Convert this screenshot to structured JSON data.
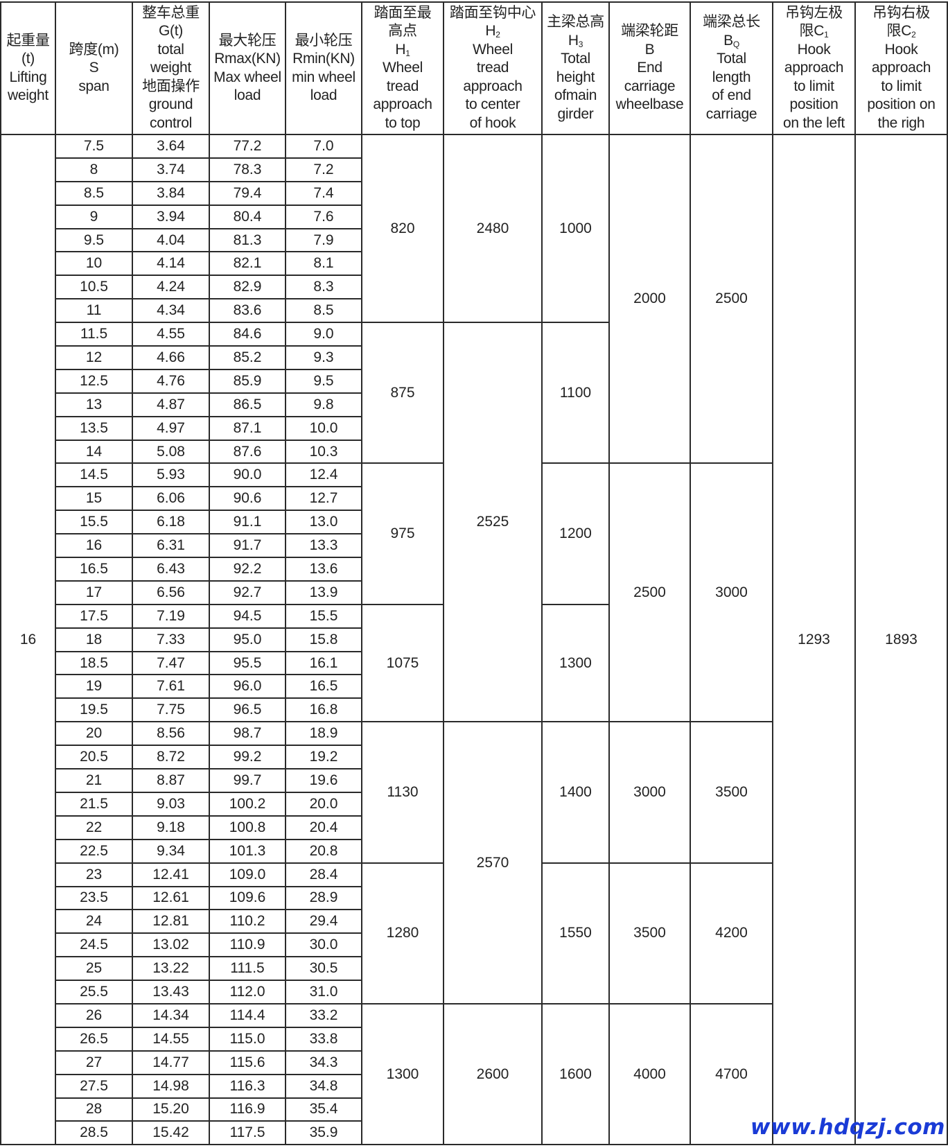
{
  "headers": [
    [
      "起重量",
      "(t)",
      "Lifting",
      "weight"
    ],
    [
      "跨度(m)",
      "S",
      "span"
    ],
    [
      "整车总重",
      "G(t)",
      "total",
      "weight",
      "地面操作",
      "ground",
      "control"
    ],
    [
      "最大轮压",
      "Rmax(KN)",
      "Max wheel",
      "load"
    ],
    [
      "最小轮压",
      "Rmin(KN)",
      "min wheel",
      "load"
    ],
    [
      "踏面至最",
      "高点",
      {
        "t": "H",
        "sub": "1"
      },
      "Wheel",
      "tread",
      "approach",
      "to top"
    ],
    [
      "踏面至钩中心",
      {
        "t": "H",
        "sub": "2"
      },
      "Wheel",
      "tread",
      "approach",
      "to center",
      "of hook"
    ],
    [
      "主梁总高",
      {
        "t": "H",
        "sub": "3"
      },
      "Total",
      "height",
      "ofmain",
      "girder"
    ],
    [
      "端梁轮距",
      "B",
      "End",
      "carriage",
      "wheelbase"
    ],
    [
      "端梁总长",
      {
        "t": "B",
        "sub": "Q"
      },
      "Total",
      "length",
      "of end",
      "carriage"
    ],
    [
      "吊钩左极",
      {
        "t": "限C",
        "sub": "1"
      },
      "Hook",
      "approach",
      "to limit",
      "position",
      "on the left"
    ],
    [
      "吊钩右极",
      {
        "t": "限C",
        "sub": "2"
      },
      "Hook",
      "approach",
      "to limit",
      "position on",
      "the righ"
    ]
  ],
  "lifting_weight": "16",
  "rows": [
    [
      "7.5",
      "3.64",
      "77.2",
      "7.0"
    ],
    [
      "8",
      "3.74",
      "78.3",
      "7.2"
    ],
    [
      "8.5",
      "3.84",
      "79.4",
      "7.4"
    ],
    [
      "9",
      "3.94",
      "80.4",
      "7.6"
    ],
    [
      "9.5",
      "4.04",
      "81.3",
      "7.9"
    ],
    [
      "10",
      "4.14",
      "82.1",
      "8.1"
    ],
    [
      "10.5",
      "4.24",
      "82.9",
      "8.3"
    ],
    [
      "11",
      "4.34",
      "83.6",
      "8.5"
    ],
    [
      "11.5",
      "4.55",
      "84.6",
      "9.0"
    ],
    [
      "12",
      "4.66",
      "85.2",
      "9.3"
    ],
    [
      "12.5",
      "4.76",
      "85.9",
      "9.5"
    ],
    [
      "13",
      "4.87",
      "86.5",
      "9.8"
    ],
    [
      "13.5",
      "4.97",
      "87.1",
      "10.0"
    ],
    [
      "14",
      "5.08",
      "87.6",
      "10.3"
    ],
    [
      "14.5",
      "5.93",
      "90.0",
      "12.4"
    ],
    [
      "15",
      "6.06",
      "90.6",
      "12.7"
    ],
    [
      "15.5",
      "6.18",
      "91.1",
      "13.0"
    ],
    [
      "16",
      "6.31",
      "91.7",
      "13.3"
    ],
    [
      "16.5",
      "6.43",
      "92.2",
      "13.6"
    ],
    [
      "17",
      "6.56",
      "92.7",
      "13.9"
    ],
    [
      "17.5",
      "7.19",
      "94.5",
      "15.5"
    ],
    [
      "18",
      "7.33",
      "95.0",
      "15.8"
    ],
    [
      "18.5",
      "7.47",
      "95.5",
      "16.1"
    ],
    [
      "19",
      "7.61",
      "96.0",
      "16.5"
    ],
    [
      "19.5",
      "7.75",
      "96.5",
      "16.8"
    ],
    [
      "20",
      "8.56",
      "98.7",
      "18.9"
    ],
    [
      "20.5",
      "8.72",
      "99.2",
      "19.2"
    ],
    [
      "21",
      "8.87",
      "99.7",
      "19.6"
    ],
    [
      "21.5",
      "9.03",
      "100.2",
      "20.0"
    ],
    [
      "22",
      "9.18",
      "100.8",
      "20.4"
    ],
    [
      "22.5",
      "9.34",
      "101.3",
      "20.8"
    ],
    [
      "23",
      "12.41",
      "109.0",
      "28.4"
    ],
    [
      "23.5",
      "12.61",
      "109.6",
      "28.9"
    ],
    [
      "24",
      "12.81",
      "110.2",
      "29.4"
    ],
    [
      "24.5",
      "13.02",
      "110.9",
      "30.0"
    ],
    [
      "25",
      "13.22",
      "111.5",
      "30.5"
    ],
    [
      "25.5",
      "13.43",
      "112.0",
      "31.0"
    ],
    [
      "26",
      "14.34",
      "114.4",
      "33.2"
    ],
    [
      "26.5",
      "14.55",
      "115.0",
      "33.8"
    ],
    [
      "27",
      "14.77",
      "115.6",
      "34.3"
    ],
    [
      "27.5",
      "14.98",
      "116.3",
      "34.8"
    ],
    [
      "28",
      "15.20",
      "116.9",
      "35.4"
    ],
    [
      "28.5",
      "15.42",
      "117.5",
      "35.9"
    ]
  ],
  "merged": {
    "H1": [
      {
        "value": "820",
        "rows": 8
      },
      {
        "value": "875",
        "rows": 6
      },
      {
        "value": "975",
        "rows": 6
      },
      {
        "value": "1075",
        "rows": 5
      },
      {
        "value": "1130",
        "rows": 6
      },
      {
        "value": "1280",
        "rows": 6
      },
      {
        "value": "1300",
        "rows": 6
      }
    ],
    "H2": [
      {
        "value": "2480",
        "rows": 8
      },
      {
        "value": "2525",
        "rows": 17
      },
      {
        "value": "2570",
        "rows": 12
      },
      {
        "value": "2600",
        "rows": 6
      }
    ],
    "H3": [
      {
        "value": "1000",
        "rows": 8
      },
      {
        "value": "1100",
        "rows": 6
      },
      {
        "value": "1200",
        "rows": 6
      },
      {
        "value": "1300",
        "rows": 5
      },
      {
        "value": "1400",
        "rows": 6
      },
      {
        "value": "1550",
        "rows": 6
      },
      {
        "value": "1600",
        "rows": 6
      }
    ],
    "B": [
      {
        "value": "2000",
        "rows": 14
      },
      {
        "value": "2500",
        "rows": 11
      },
      {
        "value": "3000",
        "rows": 6
      },
      {
        "value": "3500",
        "rows": 6
      },
      {
        "value": "4000",
        "rows": 6
      }
    ],
    "BQ": [
      {
        "value": "2500",
        "rows": 14
      },
      {
        "value": "3000",
        "rows": 11
      },
      {
        "value": "3500",
        "rows": 6
      },
      {
        "value": "4200",
        "rows": 6
      },
      {
        "value": "4700",
        "rows": 6
      }
    ],
    "C1": [
      {
        "value": "1293",
        "rows": 43
      }
    ],
    "C2": [
      {
        "value": "1893",
        "rows": 43
      }
    ]
  },
  "watermark": "www.hdqzj.com",
  "colors": {
    "watermark": "#1a3bd6",
    "border": "#2a2a2a"
  }
}
